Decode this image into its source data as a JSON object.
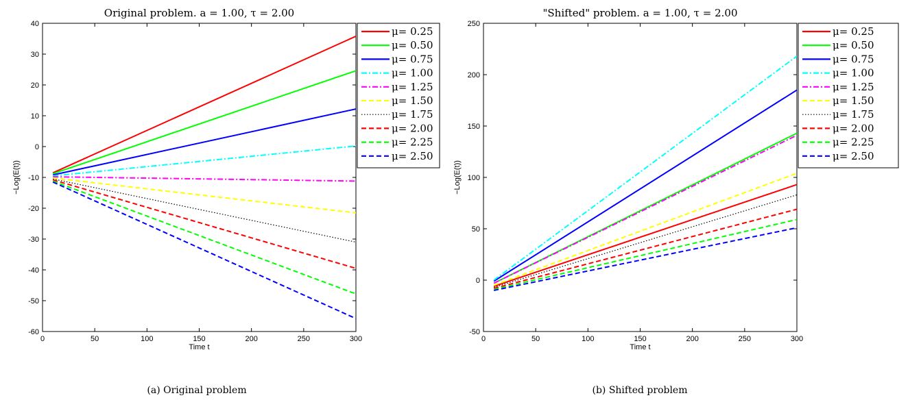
{
  "legend_labels": [
    "μ= 0.25",
    "μ= 0.50",
    "μ= 0.75",
    "μ= 1.00",
    "μ= 1.25",
    "μ= 1.50",
    "μ= 1.75",
    "μ= 2.00",
    "μ= 2.25",
    "μ= 2.50"
  ],
  "series_styles": [
    {
      "color": "#ff0000",
      "dash": "solid"
    },
    {
      "color": "#00ff00",
      "dash": "solid"
    },
    {
      "color": "#0000ff",
      "dash": "solid"
    },
    {
      "color": "#00ffff",
      "dash": "dashdot"
    },
    {
      "color": "#ff00ff",
      "dash": "dashdot"
    },
    {
      "color": "#ffff00",
      "dash": "dashed"
    },
    {
      "color": "#000000",
      "dash": "dotted"
    },
    {
      "color": "#ff0000",
      "dash": "dashed"
    },
    {
      "color": "#00ff00",
      "dash": "dashed"
    },
    {
      "color": "#0000ff",
      "dash": "dashed"
    }
  ],
  "chart_data": [
    {
      "type": "line",
      "title": "Original problem. a = 1.00, τ = 2.00",
      "caption": "(a)  Original problem",
      "xlabel": "Time t",
      "ylabel": "−Log(E(t))",
      "xlim": [
        0,
        300
      ],
      "ylim": [
        -60,
        40
      ],
      "xticks": [
        0,
        50,
        100,
        150,
        200,
        250,
        300
      ],
      "yticks": [
        -60,
        -50,
        -40,
        -30,
        -20,
        -10,
        0,
        10,
        20,
        30,
        40
      ],
      "legend_position": "top-right",
      "x": [
        10,
        300
      ],
      "series": [
        {
          "name": "μ= 0.25",
          "values": [
            -8.5,
            35.8
          ]
        },
        {
          "name": "μ= 0.50",
          "values": [
            -8.8,
            24.6
          ]
        },
        {
          "name": "μ= 0.75",
          "values": [
            -9.2,
            12.2
          ]
        },
        {
          "name": "μ= 1.00",
          "values": [
            -9.5,
            0.2
          ]
        },
        {
          "name": "μ= 1.25",
          "values": [
            -9.8,
            -11.2
          ]
        },
        {
          "name": "μ= 1.50",
          "values": [
            -10.2,
            -21.5
          ]
        },
        {
          "name": "μ= 1.75",
          "values": [
            -10.5,
            -31.0
          ]
        },
        {
          "name": "μ= 2.00",
          "values": [
            -10.8,
            -39.5
          ]
        },
        {
          "name": "μ= 2.25",
          "values": [
            -11.2,
            -47.8
          ]
        },
        {
          "name": "μ= 2.50",
          "values": [
            -11.5,
            -55.8
          ]
        }
      ]
    },
    {
      "type": "line",
      "title": "\"Shifted\" problem. a = 1.00, τ = 2.00",
      "caption": "(b)  Shifted problem",
      "xlabel": "Time t",
      "ylabel": "−Log(E(t))",
      "xlim": [
        0,
        300
      ],
      "ylim": [
        -50,
        250
      ],
      "xticks": [
        0,
        50,
        100,
        150,
        200,
        250,
        300
      ],
      "yticks": [
        -50,
        0,
        50,
        100,
        150,
        200,
        250
      ],
      "legend_position": "top-right",
      "x": [
        10,
        300
      ],
      "series": [
        {
          "name": "μ= 0.25",
          "values": [
            -6,
            93
          ]
        },
        {
          "name": "μ= 0.50",
          "values": [
            -3,
            143
          ]
        },
        {
          "name": "μ= 0.75",
          "values": [
            -1,
            185
          ]
        },
        {
          "name": "μ= 1.00",
          "values": [
            0,
            218
          ]
        },
        {
          "name": "μ= 1.25",
          "values": [
            -3,
            141
          ]
        },
        {
          "name": "μ= 1.50",
          "values": [
            -5,
            104
          ]
        },
        {
          "name": "μ= 1.75",
          "values": [
            -7,
            83
          ]
        },
        {
          "name": "μ= 2.00",
          "values": [
            -8,
            69
          ]
        },
        {
          "name": "μ= 2.25",
          "values": [
            -9,
            59
          ]
        },
        {
          "name": "μ= 2.50",
          "values": [
            -10,
            51
          ]
        }
      ]
    }
  ]
}
